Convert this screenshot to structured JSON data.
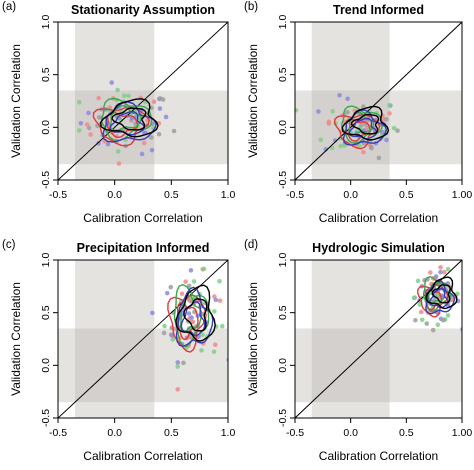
{
  "colors": {
    "shade": "#e5e3df",
    "overlap": "#d3d0cd",
    "red": "#e03a3a",
    "green": "#3aa84a",
    "blue": "#3a3ab8",
    "black": "#000000",
    "gray": "#9a9a9a",
    "point_blue": "#8b8bdd",
    "point_green": "#7fcf86",
    "point_red": "#ee8b8b",
    "point_gray": "#9d9d9d"
  },
  "chart_data": [
    {
      "type": "scatter",
      "letter": "(a)",
      "title": "Stationarity Assumption",
      "xlabel": "Calibration Correlation",
      "ylabel": "Validation Correlation",
      "xlim": [
        -0.5,
        1.0
      ],
      "ylim": [
        -0.5,
        1.0
      ],
      "xticks": [
        "-0.5",
        "0.0",
        "0.5",
        "1.0"
      ],
      "yticks": [
        "-0.5",
        "0.0",
        "0.5",
        "1.0"
      ],
      "shaded_band": [
        -0.35,
        0.35
      ],
      "reference_line": "1:1",
      "center": [
        0.1,
        0.05
      ],
      "spread": [
        0.2,
        0.15
      ],
      "contour_radius": [
        0.22,
        0.17
      ]
    },
    {
      "type": "scatter",
      "letter": "(b)",
      "title": "Trend Informed",
      "xlabel": "Calibration Correlation",
      "ylabel": "Validation Correlation",
      "xlim": [
        -0.5,
        1.0
      ],
      "ylim": [
        -0.5,
        1.0
      ],
      "xticks": [
        "-0.5",
        "0.0",
        "0.5",
        "1.00"
      ],
      "yticks": [
        "-0.5",
        "0.0",
        "0.5",
        "1.0"
      ],
      "shaded_band": [
        -0.35,
        0.35
      ],
      "reference_line": "1:1",
      "center": [
        0.1,
        0.0
      ],
      "spread": [
        0.17,
        0.14
      ],
      "contour_radius": [
        0.18,
        0.15
      ]
    },
    {
      "type": "scatter",
      "letter": "(c)",
      "title": "Precipitation Informed",
      "xlabel": "Calibration Correlation",
      "ylabel": "Validation Correlation",
      "xlim": [
        -0.5,
        1.0
      ],
      "ylim": [
        -0.5,
        1.0
      ],
      "xticks": [
        "-0.5",
        "0.0",
        "0.5",
        "1.0"
      ],
      "yticks": [
        "-0.5",
        "0.0",
        "0.5",
        "1.0"
      ],
      "shaded_band": [
        -0.35,
        0.35
      ],
      "reference_line": "1:1",
      "center": [
        0.68,
        0.45
      ],
      "spread": [
        0.12,
        0.2
      ],
      "contour_radius": [
        0.15,
        0.25
      ]
    },
    {
      "type": "scatter",
      "letter": "(d)",
      "title": "Hydrologic Simulation",
      "xlabel": "Calibration Correlation",
      "ylabel": "Validation Correlation",
      "xlim": [
        -0.5,
        1.0
      ],
      "ylim": [
        -0.5,
        1.0
      ],
      "xticks": [
        "-0.5",
        "0.0",
        "0.5",
        "1.00"
      ],
      "yticks": [
        "-0.5",
        "0.0",
        "0.5",
        "1.0"
      ],
      "shaded_band": [
        -0.35,
        0.35
      ],
      "reference_line": "1:1",
      "center": [
        0.78,
        0.65
      ],
      "spread": [
        0.1,
        0.12
      ],
      "contour_radius": [
        0.12,
        0.14
      ]
    }
  ]
}
